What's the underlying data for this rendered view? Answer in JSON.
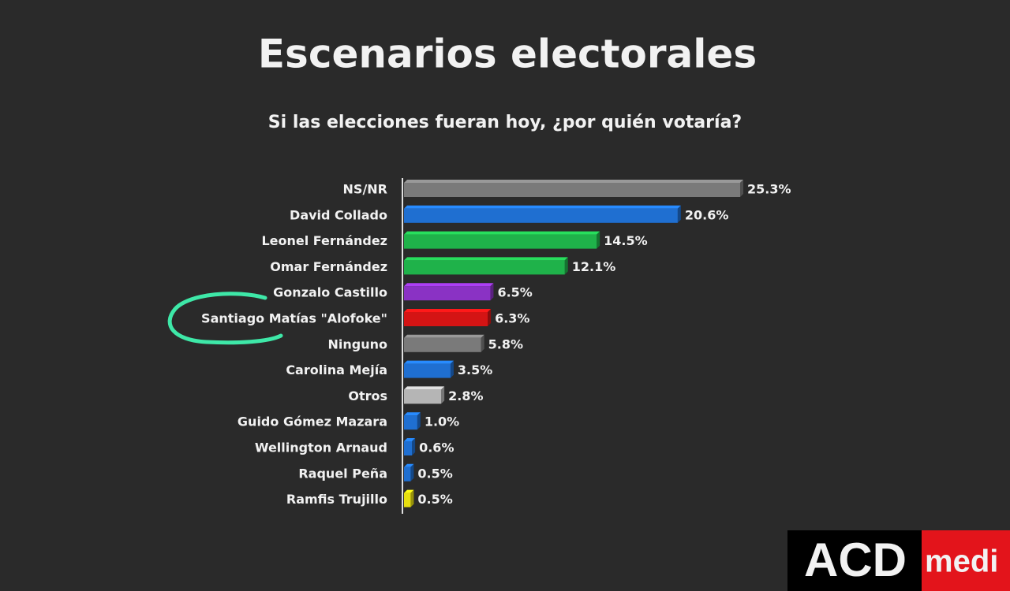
{
  "chart_data": {
    "type": "barh",
    "title": "Escenarios electorales",
    "subtitle": "Si las elecciones fueran hoy, ¿por quién votaría?",
    "categories": [
      "NS/NR",
      "David Collado",
      "Leonel Fernández",
      "Omar Fernández",
      "Gonzalo Castillo",
      "Santiago Matías \"Alofoke\"",
      "Ninguno",
      "Carolina Mejía",
      "Otros",
      "Guido Gómez Mazara",
      "Wellington Arnaud",
      "Raquel Peña",
      "Ramfis Trujillo"
    ],
    "values": [
      25.3,
      20.6,
      14.5,
      12.1,
      6.5,
      6.3,
      5.8,
      3.5,
      2.8,
      1.0,
      0.6,
      0.5,
      0.5
    ],
    "value_labels": [
      "25.3%",
      "20.6%",
      "14.5%",
      "12.1%",
      "6.5%",
      "6.3%",
      "5.8%",
      "3.5%",
      "2.8%",
      "1.0%",
      "0.6%",
      "0.5%",
      "0.5%"
    ],
    "colors": [
      "#7a7a7a",
      "#1f6fd1",
      "#1fb24a",
      "#1fb24a",
      "#8a32c4",
      "#d41414",
      "#7a7a7a",
      "#1f6fd1",
      "#b5b5b5",
      "#1f6fd1",
      "#1f6fd1",
      "#1f6fd1",
      "#e8e010"
    ]
  },
  "logo": {
    "left": "ACD",
    "right": "medi"
  }
}
